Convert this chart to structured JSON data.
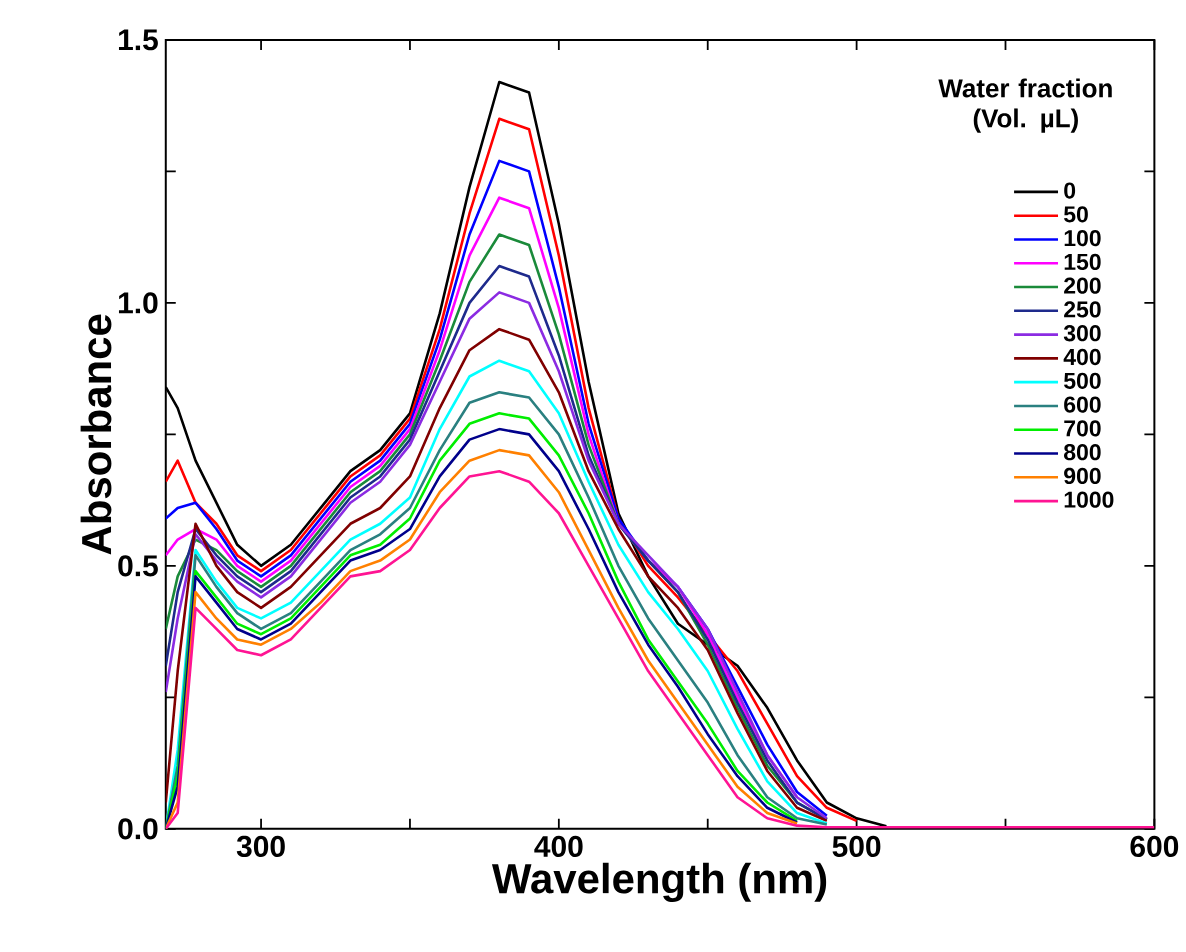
{
  "chart_data": {
    "type": "line",
    "xlabel": "Wavelength (nm)",
    "ylabel": "Absorbance",
    "legend_title": "Water fraction (Vol. µL)",
    "legend": "top right",
    "grid": false,
    "line_style": "solid",
    "xlim": [
      268,
      600
    ],
    "ylim": [
      0,
      1.5
    ],
    "xticks": [
      300,
      {
        "value": 350,
        "label": null
      },
      400,
      {
        "value": 450,
        "label": null
      },
      500,
      {
        "value": 550,
        "label": null
      },
      600
    ],
    "yticks": [
      {
        "value": 0,
        "label": "0.0"
      },
      {
        "value": 0.25,
        "label": null
      },
      {
        "value": 0.5,
        "label": "0.5"
      },
      {
        "value": 0.75,
        "label": null
      },
      {
        "value": 1.0,
        "label": "1.0"
      },
      {
        "value": 1.25,
        "label": null
      },
      {
        "value": 1.5,
        "label": "1.5"
      }
    ],
    "x": [
      268,
      272,
      278,
      285,
      292,
      300,
      310,
      320,
      330,
      340,
      350,
      360,
      370,
      380,
      390,
      400,
      410,
      420,
      430,
      440,
      450,
      460,
      470,
      480,
      490,
      500,
      510,
      520,
      600
    ],
    "series": [
      {
        "name": "0",
        "color": "#000000",
        "values": [
          0.84,
          0.8,
          0.7,
          0.62,
          0.54,
          0.5,
          0.54,
          0.61,
          0.68,
          0.72,
          0.79,
          0.98,
          1.22,
          1.42,
          1.4,
          1.15,
          0.85,
          0.6,
          0.48,
          0.39,
          0.35,
          0.31,
          0.23,
          0.13,
          0.05,
          0.02,
          0.005,
          null,
          null
        ]
      },
      {
        "name": "50",
        "color": "#ff0000",
        "values": [
          0.66,
          0.7,
          0.62,
          0.58,
          0.52,
          0.49,
          0.53,
          0.6,
          0.67,
          0.71,
          0.78,
          0.95,
          1.17,
          1.35,
          1.33,
          1.09,
          0.8,
          0.59,
          0.5,
          0.44,
          0.37,
          0.3,
          0.2,
          0.1,
          0.04,
          0.015,
          null,
          null,
          null
        ]
      },
      {
        "name": "100",
        "color": "#0000ff",
        "values": [
          0.59,
          0.61,
          0.62,
          0.57,
          0.51,
          0.48,
          0.52,
          0.59,
          0.66,
          0.7,
          0.77,
          0.93,
          1.13,
          1.27,
          1.25,
          1.03,
          0.77,
          0.59,
          0.51,
          0.46,
          0.38,
          0.27,
          0.16,
          0.07,
          0.025,
          null,
          null,
          null,
          null
        ]
      },
      {
        "name": "150",
        "color": "#ff00ff",
        "values": [
          0.52,
          0.55,
          0.57,
          0.55,
          0.5,
          0.47,
          0.51,
          0.58,
          0.65,
          0.69,
          0.76,
          0.91,
          1.09,
          1.2,
          1.18,
          0.99,
          0.75,
          0.58,
          0.51,
          0.46,
          0.37,
          0.25,
          0.14,
          0.06,
          null,
          null,
          null,
          null,
          null
        ]
      },
      {
        "name": "200",
        "color": "#1a8a3a",
        "values": [
          0.38,
          0.48,
          0.55,
          0.53,
          0.49,
          0.46,
          0.5,
          0.57,
          0.64,
          0.68,
          0.75,
          0.89,
          1.04,
          1.13,
          1.11,
          0.94,
          0.73,
          0.58,
          0.51,
          0.45,
          0.35,
          0.23,
          0.12,
          0.05,
          0.018,
          null,
          null,
          null,
          null
        ]
      },
      {
        "name": "250",
        "color": "#1e2a8c",
        "values": [
          0.31,
          0.45,
          0.57,
          0.52,
          0.48,
          0.45,
          0.49,
          0.56,
          0.63,
          0.67,
          0.74,
          0.87,
          1.0,
          1.07,
          1.05,
          0.9,
          0.71,
          0.58,
          0.51,
          0.45,
          0.36,
          0.24,
          0.13,
          0.05,
          0.018,
          null,
          null,
          null,
          null
        ]
      },
      {
        "name": "300",
        "color": "#8b2be2",
        "values": [
          0.26,
          0.4,
          0.56,
          0.51,
          0.47,
          0.44,
          0.48,
          0.55,
          0.62,
          0.66,
          0.73,
          0.85,
          0.97,
          1.02,
          1.0,
          0.87,
          0.7,
          0.58,
          0.52,
          0.46,
          0.38,
          0.26,
          0.14,
          0.06,
          0.02,
          null,
          null,
          null,
          null
        ]
      },
      {
        "name": "400",
        "color": "#800000",
        "values": [
          0.05,
          0.3,
          0.58,
          0.5,
          0.45,
          0.42,
          0.46,
          0.52,
          0.58,
          0.61,
          0.67,
          0.8,
          0.91,
          0.95,
          0.93,
          0.83,
          0.68,
          0.57,
          0.48,
          0.42,
          0.34,
          0.22,
          0.11,
          0.04,
          0.015,
          null,
          null,
          null,
          null
        ]
      },
      {
        "name": "500",
        "color": "#00ffff",
        "values": [
          0,
          0.15,
          0.53,
          0.47,
          0.42,
          0.4,
          0.43,
          0.49,
          0.55,
          0.58,
          0.63,
          0.76,
          0.86,
          0.89,
          0.87,
          0.79,
          0.66,
          0.54,
          0.45,
          0.38,
          0.3,
          0.19,
          0.09,
          0.03,
          0.01,
          null,
          null,
          null,
          null
        ]
      },
      {
        "name": "600",
        "color": "#2a8080",
        "values": [
          0,
          0.12,
          0.52,
          0.46,
          0.41,
          0.38,
          0.41,
          0.47,
          0.53,
          0.56,
          0.61,
          0.72,
          0.81,
          0.83,
          0.82,
          0.75,
          0.63,
          0.5,
          0.4,
          0.32,
          0.24,
          0.14,
          0.06,
          0.02,
          0.008,
          null,
          null,
          null,
          null
        ]
      },
      {
        "name": "700",
        "color": "#00ee00",
        "values": [
          0,
          0.1,
          0.49,
          0.44,
          0.39,
          0.37,
          0.4,
          0.46,
          0.52,
          0.54,
          0.59,
          0.7,
          0.77,
          0.79,
          0.78,
          0.71,
          0.6,
          0.47,
          0.36,
          0.28,
          0.2,
          0.11,
          0.05,
          0.015,
          null,
          null,
          null,
          null,
          null
        ]
      },
      {
        "name": "800",
        "color": "#00008b",
        "values": [
          0,
          0.08,
          0.48,
          0.43,
          0.38,
          0.36,
          0.39,
          0.45,
          0.51,
          0.53,
          0.57,
          0.67,
          0.74,
          0.76,
          0.75,
          0.68,
          0.57,
          0.45,
          0.35,
          0.27,
          0.18,
          0.1,
          0.04,
          0.012,
          null,
          null,
          null,
          null,
          null
        ]
      },
      {
        "name": "900",
        "color": "#ff8000",
        "values": [
          0,
          0.05,
          0.45,
          0.4,
          0.36,
          0.35,
          0.38,
          0.43,
          0.49,
          0.51,
          0.55,
          0.64,
          0.7,
          0.72,
          0.71,
          0.64,
          0.53,
          0.42,
          0.32,
          0.24,
          0.16,
          0.08,
          0.03,
          0.01,
          null,
          null,
          null,
          null,
          null
        ]
      },
      {
        "name": "1000",
        "color": "#ff1493",
        "values": [
          0,
          0.03,
          0.42,
          0.38,
          0.34,
          0.33,
          0.36,
          0.42,
          0.48,
          0.49,
          0.53,
          0.61,
          0.67,
          0.68,
          0.66,
          0.6,
          0.5,
          0.4,
          0.3,
          0.22,
          0.14,
          0.06,
          0.02,
          0.006,
          0.003,
          0.003,
          0.003,
          0.003,
          0.003
        ]
      }
    ]
  }
}
